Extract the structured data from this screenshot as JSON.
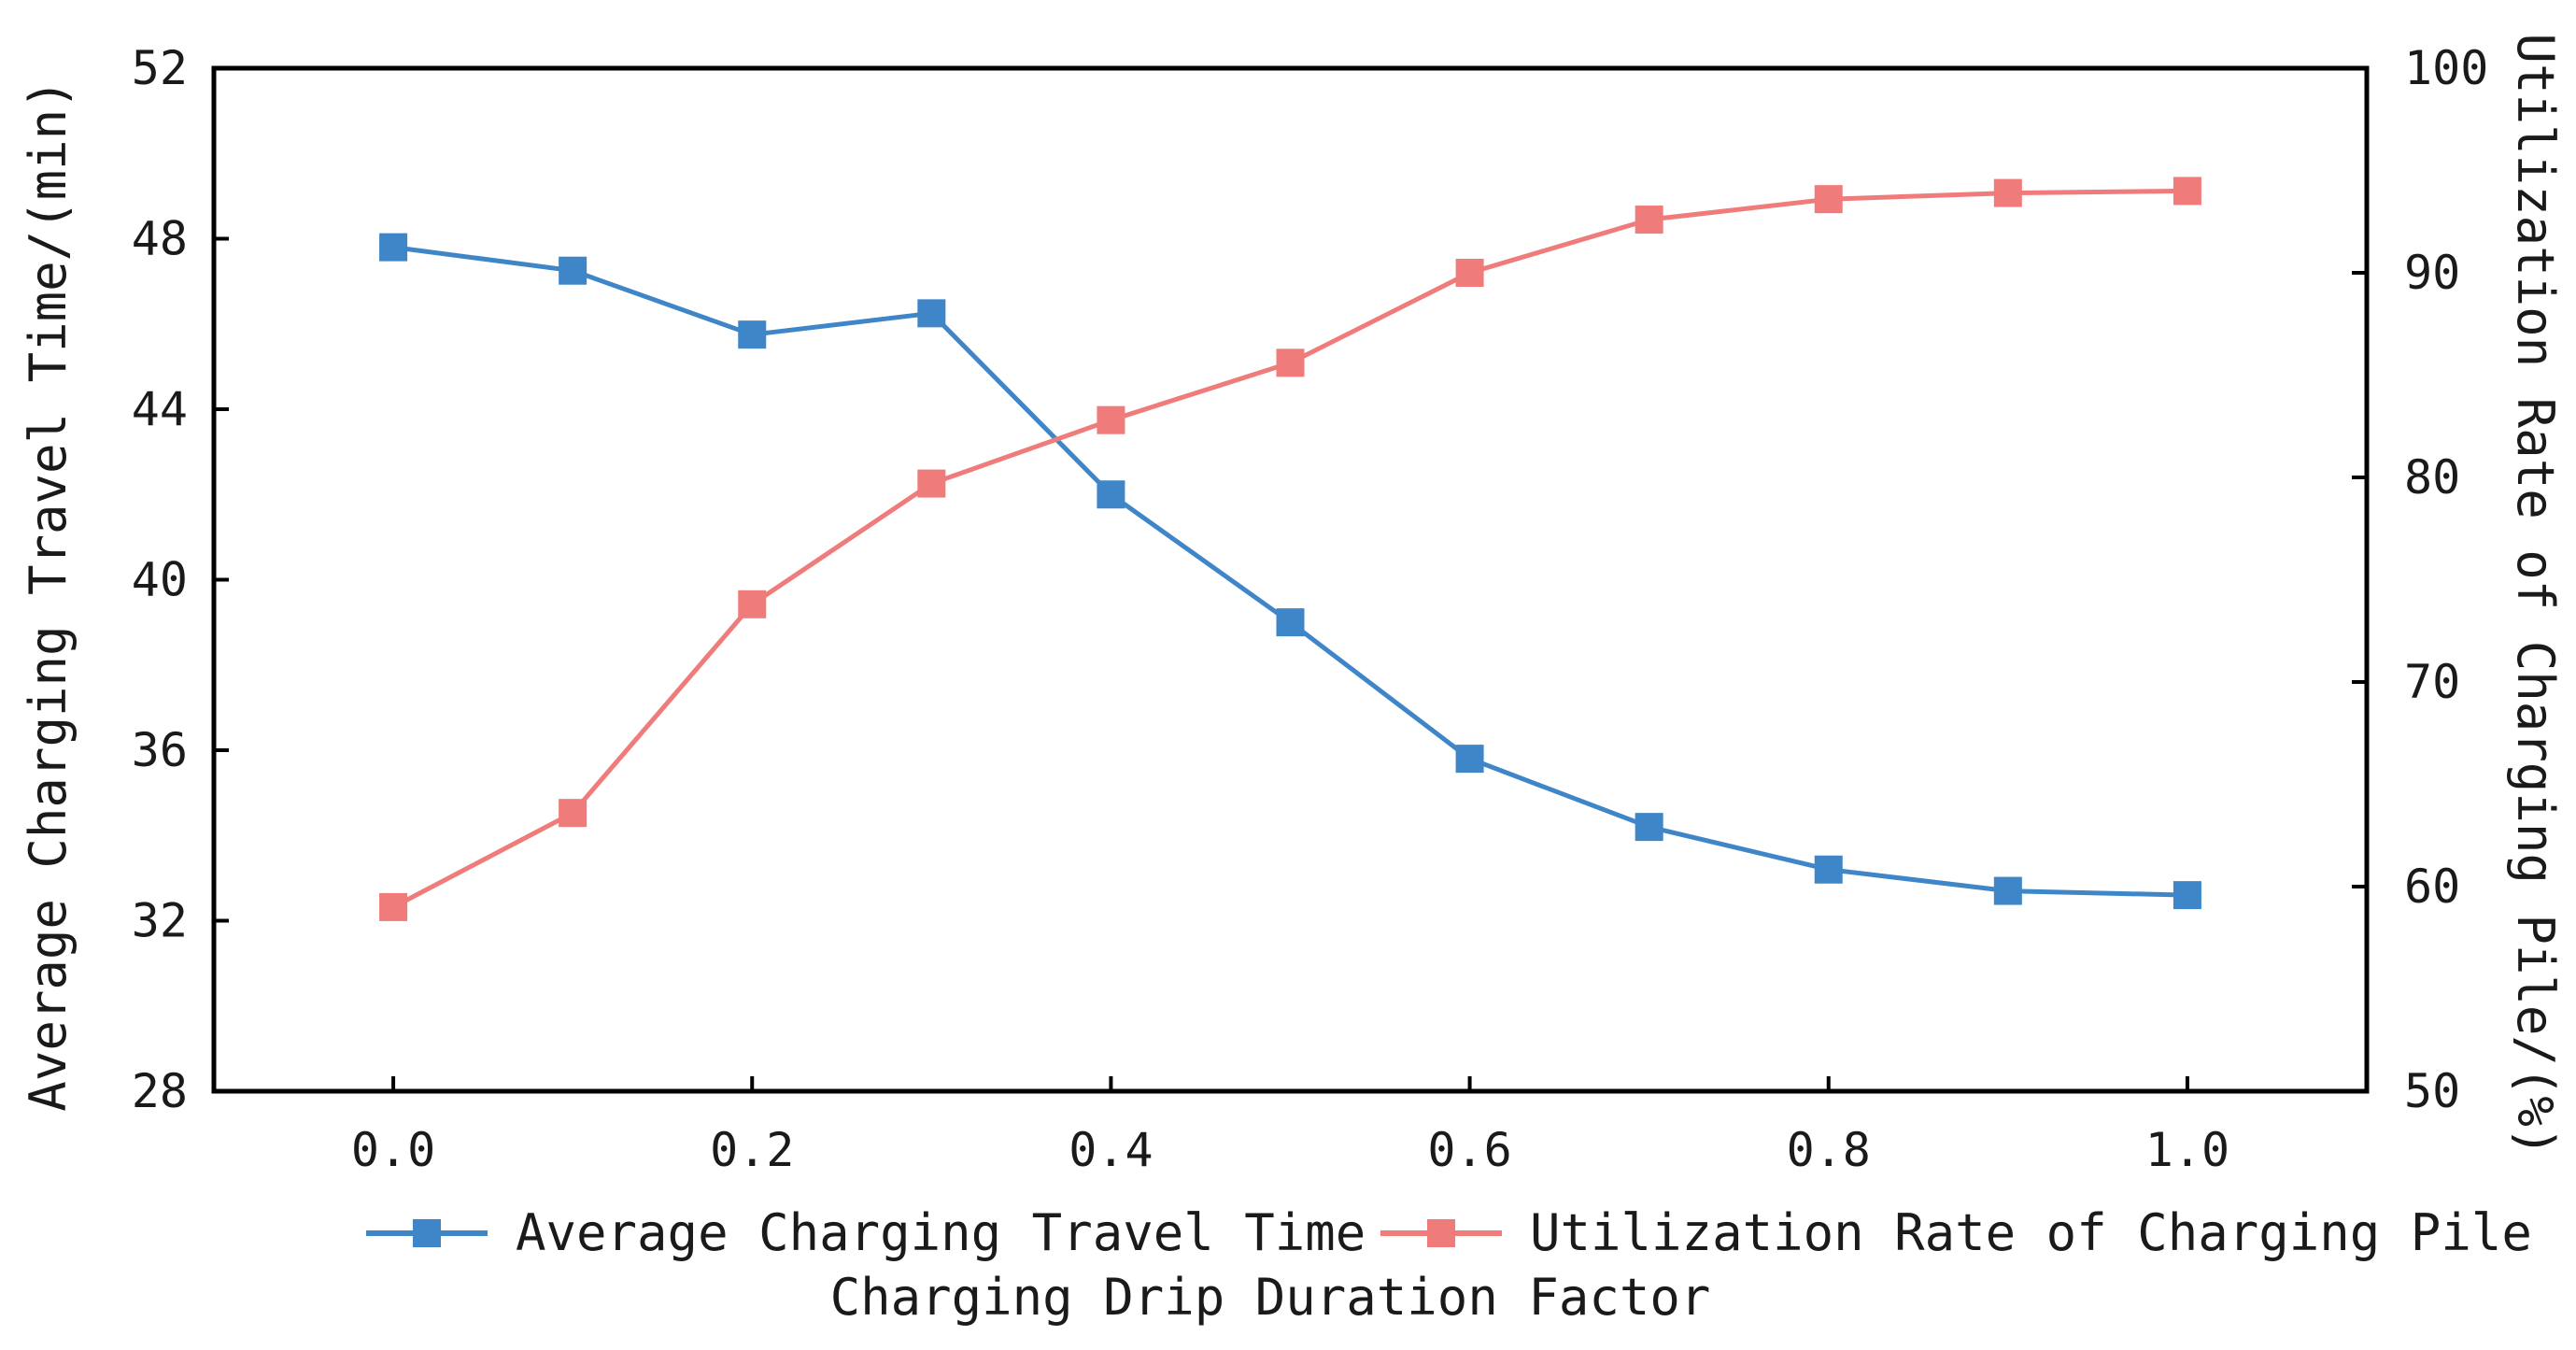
{
  "chart_data": {
    "type": "line",
    "title": "",
    "xlabel": "Charging Drip Duration Factor",
    "ylabel_left": "Average Charging Travel Time/(min)",
    "ylabel_right": "Utilization Rate of Charging Pile/(%)",
    "x": [
      0.0,
      0.1,
      0.2,
      0.3,
      0.4,
      0.5,
      0.6,
      0.7,
      0.8,
      0.9,
      1.0
    ],
    "xlim": [
      -0.1,
      1.1
    ],
    "xticks": [
      "0.0",
      "0.2",
      "0.4",
      "0.6",
      "0.8",
      "1.0"
    ],
    "xtick_values": [
      0.0,
      0.2,
      0.4,
      0.6,
      0.8,
      1.0
    ],
    "ylim_left": [
      28,
      52
    ],
    "yticks_left": [
      "28",
      "32",
      "36",
      "40",
      "44",
      "48",
      "52"
    ],
    "ylim_right": [
      50,
      100
    ],
    "yticks_right": [
      "50",
      "60",
      "70",
      "80",
      "90",
      "100"
    ],
    "grid": false,
    "legend_position": "below the plot",
    "series": [
      {
        "name": "Average Charging Travel Time",
        "axis": "left",
        "color": "#3f86c8",
        "marker": "square",
        "values": [
          47.8,
          47.25,
          45.75,
          46.25,
          42.0,
          39.0,
          35.8,
          34.2,
          33.2,
          32.7,
          32.6
        ]
      },
      {
        "name": "Utilization Rate of Charging Pile",
        "axis": "right",
        "color": "#ef7b7b",
        "marker": "square",
        "values": [
          59.0,
          63.6,
          73.8,
          79.7,
          82.8,
          85.6,
          90.0,
          92.6,
          93.6,
          93.9,
          94.0
        ]
      }
    ]
  }
}
